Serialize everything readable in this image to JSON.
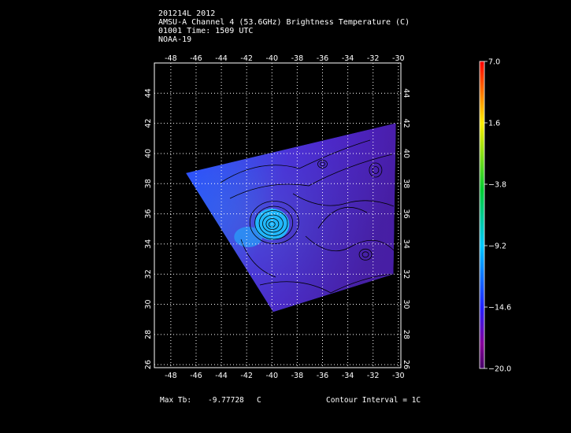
{
  "header": {
    "line1": "201214L 2012",
    "line2": "AMSU-A Channel 4 (53.6GHz) Brightness Temperature (C)",
    "line3": "01001 Time: 1509 UTC",
    "line4": "NOAA-19"
  },
  "map": {
    "lon_ticks": [
      "-48",
      "-46",
      "-44",
      "-42",
      "-40",
      "-38",
      "-36",
      "-34",
      "-32",
      "-30"
    ],
    "lat_ticks": [
      "44",
      "42",
      "40",
      "38",
      "36",
      "34",
      "32",
      "30",
      "28",
      "26"
    ],
    "lon_range": [
      -49.3,
      -29.8
    ],
    "lat_range": [
      25.8,
      46.0
    ],
    "swath_corners": [
      [
        -46.8,
        38.7
      ],
      [
        -30.2,
        42.0
      ],
      [
        -30.4,
        32.0
      ],
      [
        -39.9,
        29.5
      ]
    ],
    "warm_core": {
      "lon": -40.0,
      "lat": 35.3
    },
    "colors": {
      "background": "#000000",
      "grid": "#ffffff",
      "contour": "#000000"
    }
  },
  "colorbar": {
    "labels": [
      "7.0",
      "1.6",
      "−3.8",
      "−9.2",
      "−14.6",
      "−20.0"
    ],
    "values": [
      7.0,
      1.6,
      -3.8,
      -9.2,
      -14.6,
      -20.0
    ],
    "colors": [
      "#ff0000",
      "#ffee00",
      "#00cc33",
      "#00c8ff",
      "#2222ff",
      "#880099",
      "#440066"
    ]
  },
  "footer": {
    "max_tb_label": "Max Tb:",
    "max_tb_value": "-9.77728",
    "max_tb_unit": "C",
    "contour_interval": "Contour Interval = 1C"
  }
}
